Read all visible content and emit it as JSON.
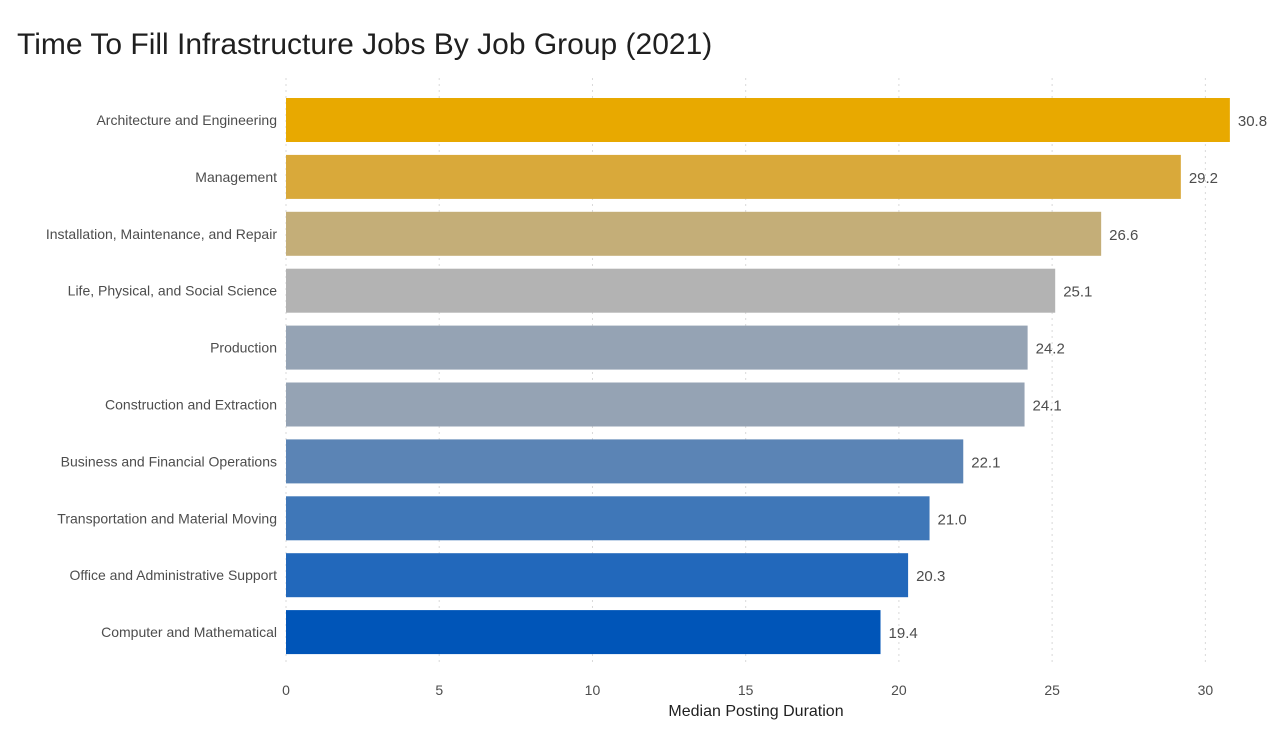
{
  "chart_data": {
    "type": "bar",
    "orientation": "horizontal",
    "title": "Time To Fill Infrastructure Jobs By Job Group (2021)",
    "xlabel": "Median Posting Duration",
    "ylabel": "",
    "xlim": [
      0,
      31
    ],
    "xticks": [
      0,
      5,
      10,
      15,
      20,
      25,
      30
    ],
    "grid": "vertical dotted",
    "categories": [
      "Architecture and Engineering",
      "Management",
      "Installation, Maintenance, and Repair",
      "Life, Physical, and Social Science",
      "Production",
      "Construction and Extraction",
      "Business and Financial Operations",
      "Transportation and Material Moving",
      "Office and Administrative Support",
      "Computer and Mathematical"
    ],
    "values": [
      30.8,
      29.2,
      26.6,
      25.1,
      24.2,
      24.1,
      22.1,
      21.0,
      20.3,
      19.4
    ],
    "value_labels": [
      "30.8",
      "29.2",
      "26.6",
      "25.1",
      "24.2",
      "24.1",
      "22.1",
      "21.0",
      "20.3",
      "19.4"
    ],
    "colors": [
      "#e8a900",
      "#d9a93a",
      "#c4ae78",
      "#b3b3b3",
      "#95a3b4",
      "#95a3b4",
      "#5b84b5",
      "#3f77b8",
      "#2268bb",
      "#0055b8"
    ]
  }
}
